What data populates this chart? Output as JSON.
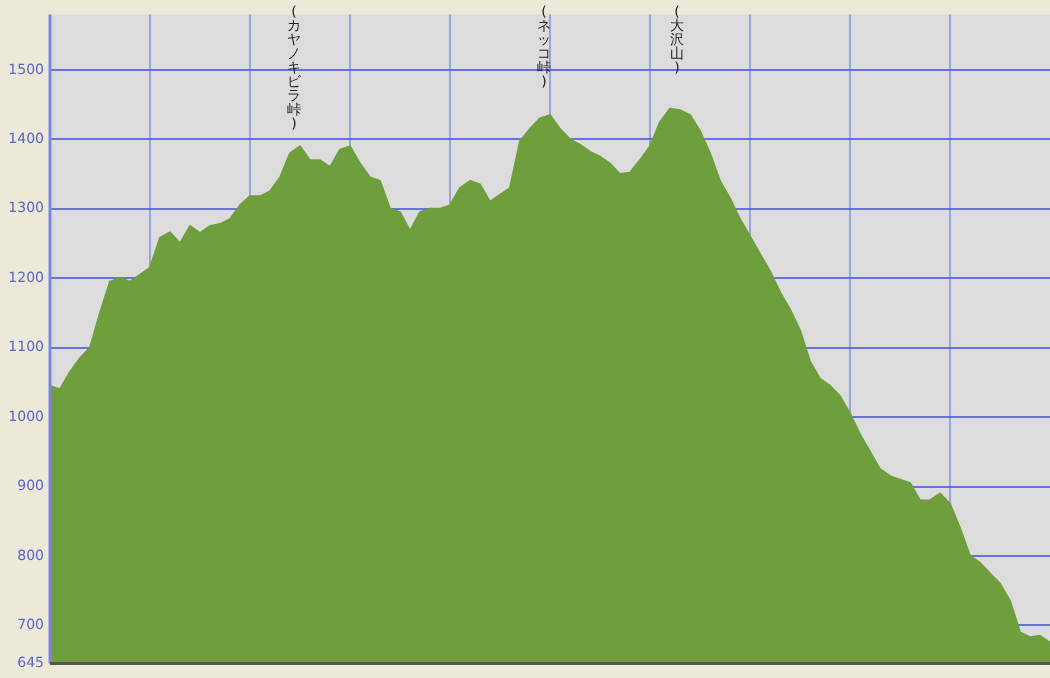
{
  "chart_data": {
    "type": "area",
    "categories": [
      null,
      null,
      null,
      null,
      null,
      null,
      null,
      null,
      null,
      null,
      null,
      null,
      null,
      null,
      null,
      null,
      null,
      null,
      null,
      null,
      null,
      null,
      null,
      null,
      null,
      null,
      null,
      null,
      null,
      null,
      null,
      null,
      null,
      null,
      null,
      null,
      null,
      null,
      null,
      null,
      null,
      null,
      null,
      null,
      null,
      null,
      null,
      null,
      null,
      null,
      null,
      null,
      null,
      null,
      null,
      null,
      null,
      null,
      null,
      null,
      null,
      null,
      null,
      null,
      null,
      null,
      null,
      null,
      null,
      null,
      null,
      null,
      null,
      null,
      null,
      null,
      null,
      null,
      null,
      null,
      null,
      null,
      null,
      null,
      null,
      null,
      null,
      null,
      null,
      null,
      null,
      null,
      null,
      null,
      null,
      null,
      null,
      null,
      null,
      null,
      null
    ],
    "series": [
      {
        "color": "#6f9e3c",
        "values": [
          1045,
          1040,
          1065,
          1085,
          1100,
          1150,
          1195,
          1200,
          1195,
          1205,
          1215,
          1258,
          1266,
          1250,
          1275,
          1265,
          1275,
          1278,
          1285,
          1305,
          1318,
          1318,
          1325,
          1345,
          1380,
          1390,
          1370,
          1370,
          1360,
          1385,
          1390,
          1365,
          1345,
          1340,
          1300,
          1295,
          1268,
          1295,
          1300,
          1300,
          1305,
          1330,
          1340,
          1335,
          1310,
          1320,
          1330,
          1397,
          1415,
          1430,
          1435,
          1415,
          1400,
          1392,
          1382,
          1375,
          1365,
          1350,
          1352,
          1370,
          1390,
          1425,
          1444,
          1442,
          1435,
          1412,
          1380,
          1340,
          1315,
          1285,
          1260,
          1235,
          1210,
          1180,
          1155,
          1125,
          1080,
          1055,
          1045,
          1030,
          1005,
          975,
          950,
          925,
          915,
          910,
          905,
          880,
          880,
          890,
          875,
          840,
          800,
          790,
          775,
          760,
          735,
          690,
          683,
          685,
          675
        ]
      }
    ],
    "ylim": [
      645,
      1580
    ],
    "yticks": [
      645,
      700,
      800,
      900,
      1000,
      1100,
      1200,
      1300,
      1400,
      1500
    ],
    "grid": true,
    "tick_labels": "y",
    "annotations": [
      "(カヤノキビラ峠)",
      "(ネッコ峠)",
      "(大沢山)"
    ]
  }
}
